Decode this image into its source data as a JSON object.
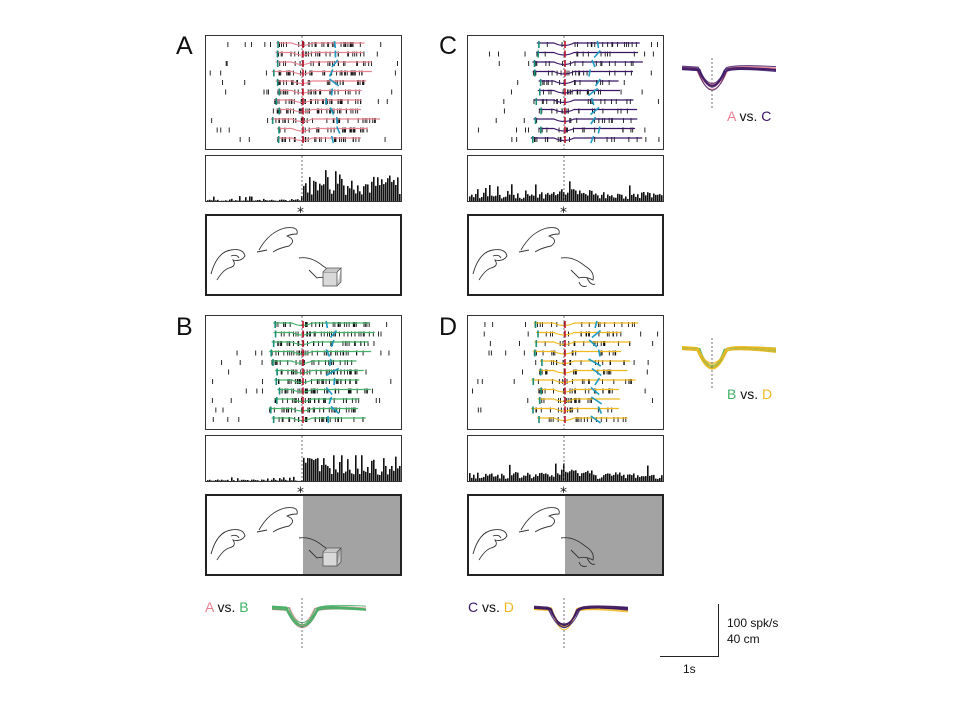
{
  "panels": [
    {
      "letter": "A",
      "condition_color": "#e6828f",
      "star": "*",
      "shaded": false,
      "object": "cube"
    },
    {
      "letter": "B",
      "condition_color": "#43b267",
      "star": "*",
      "shaded": true,
      "object": "cube"
    },
    {
      "letter": "C",
      "condition_color": "#3a1666",
      "star": "*",
      "shaded": false,
      "object": "none"
    },
    {
      "letter": "D",
      "condition_color": "#f0b91d",
      "star": "*",
      "shaded": true,
      "object": "none"
    }
  ],
  "comparisons": [
    {
      "id": "AC",
      "left": "A",
      "middle": " vs. ",
      "right": "C",
      "left_color": "#e6828f",
      "right_color": "#3a1666"
    },
    {
      "id": "BD",
      "left": "B",
      "middle": " vs. ",
      "right": "D",
      "left_color": "#43b267",
      "right_color": "#f0b91d"
    },
    {
      "id": "AB",
      "left": "A",
      "middle": " vs. ",
      "right": "B",
      "left_color": "#e6828f",
      "right_color": "#43b267"
    },
    {
      "id": "CD",
      "left": "C",
      "middle": " vs. ",
      "right": "D",
      "left_color": "#3a1666",
      "right_color": "#f0b91d"
    }
  ],
  "scale_bar": {
    "rate": "100 spk/s",
    "distance": "40 cm",
    "time": "1s"
  },
  "colors": {
    "marker_red": "#c8102e",
    "marker_cyan": "#1f9bc2",
    "marker_teal": "#1a8f7a",
    "shade": "#a3a3a3"
  }
}
